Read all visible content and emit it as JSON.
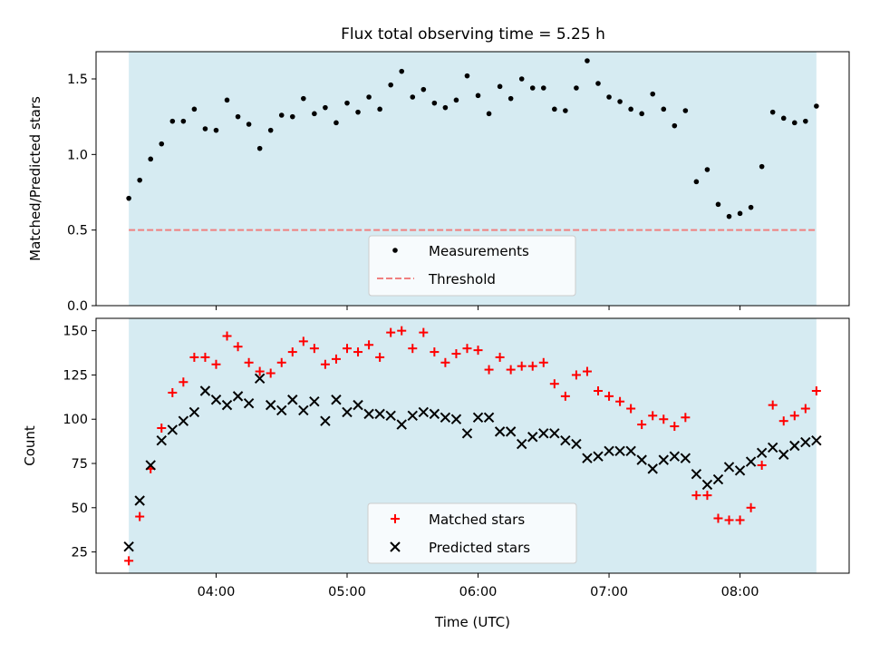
{
  "title": "Flux total observing time = 5.25 h",
  "colors": {
    "span": "#add8e6",
    "threshold": "#f08080",
    "matched": "#ff0000",
    "predicted": "#000000",
    "measurement": "#000000"
  },
  "chart_data": [
    {
      "type": "scatter",
      "ylabel": "Matched/Predicted stars",
      "xlim": [
        "03:05",
        "08:50"
      ],
      "ylim": [
        0,
        1.68
      ],
      "yticks": [
        "0.0",
        "0.5",
        "1.0",
        "1.5"
      ],
      "observing_span": [
        "03:20",
        "08:35"
      ],
      "threshold": 0.5,
      "legend_position": "lower center",
      "legend": [
        "Measurements",
        "Threshold"
      ],
      "series": [
        {
          "name": "Measurements",
          "x": [
            "03:20",
            "03:25",
            "03:30",
            "03:35",
            "03:40",
            "03:45",
            "03:50",
            "03:55",
            "04:00",
            "04:05",
            "04:10",
            "04:15",
            "04:20",
            "04:25",
            "04:30",
            "04:35",
            "04:40",
            "04:45",
            "04:50",
            "04:55",
            "05:00",
            "05:05",
            "05:10",
            "05:15",
            "05:20",
            "05:25",
            "05:30",
            "05:35",
            "05:40",
            "05:45",
            "05:50",
            "05:55",
            "06:00",
            "06:05",
            "06:10",
            "06:15",
            "06:20",
            "06:25",
            "06:30",
            "06:35",
            "06:40",
            "06:45",
            "06:50",
            "06:55",
            "07:00",
            "07:05",
            "07:10",
            "07:15",
            "07:20",
            "07:25",
            "07:30",
            "07:35",
            "07:40",
            "07:45",
            "07:50",
            "07:55",
            "08:00",
            "08:05",
            "08:10",
            "08:15",
            "08:20",
            "08:25",
            "08:30",
            "08:35"
          ],
          "values": [
            0.71,
            0.83,
            0.97,
            1.07,
            1.22,
            1.22,
            1.3,
            1.17,
            1.16,
            1.36,
            1.25,
            1.2,
            1.04,
            1.16,
            1.26,
            1.25,
            1.37,
            1.27,
            1.31,
            1.21,
            1.34,
            1.28,
            1.38,
            1.3,
            1.46,
            1.55,
            1.38,
            1.43,
            1.34,
            1.31,
            1.36,
            1.52,
            1.39,
            1.27,
            1.45,
            1.37,
            1.5,
            1.44,
            1.44,
            1.3,
            1.29,
            1.44,
            1.62,
            1.47,
            1.38,
            1.35,
            1.3,
            1.27,
            1.4,
            1.3,
            1.19,
            1.29,
            0.82,
            0.9,
            0.67,
            0.59,
            0.61,
            0.65,
            0.92,
            1.28,
            1.24,
            1.21,
            1.22,
            1.32
          ]
        },
        {
          "name": "Threshold",
          "values": [
            0.5
          ]
        }
      ]
    },
    {
      "type": "scatter",
      "xlabel": "Time (UTC)",
      "ylabel": "Count",
      "xlim": [
        "03:05",
        "08:50"
      ],
      "ylim": [
        13,
        157
      ],
      "xticks": [
        "04:00",
        "05:00",
        "06:00",
        "07:00",
        "08:00"
      ],
      "yticks": [
        "25",
        "50",
        "75",
        "100",
        "125",
        "150"
      ],
      "observing_span": [
        "03:20",
        "08:35"
      ],
      "legend_position": "lower center",
      "legend": [
        "Matched stars",
        "Predicted stars"
      ],
      "x": [
        "03:20",
        "03:25",
        "03:30",
        "03:35",
        "03:40",
        "03:45",
        "03:50",
        "03:55",
        "04:00",
        "04:05",
        "04:10",
        "04:15",
        "04:20",
        "04:25",
        "04:30",
        "04:35",
        "04:40",
        "04:45",
        "04:50",
        "04:55",
        "05:00",
        "05:05",
        "05:10",
        "05:15",
        "05:20",
        "05:25",
        "05:30",
        "05:35",
        "05:40",
        "05:45",
        "05:50",
        "05:55",
        "06:00",
        "06:05",
        "06:10",
        "06:15",
        "06:20",
        "06:25",
        "06:30",
        "06:35",
        "06:40",
        "06:45",
        "06:50",
        "06:55",
        "07:00",
        "07:05",
        "07:10",
        "07:15",
        "07:20",
        "07:25",
        "07:30",
        "07:35",
        "07:40",
        "07:45",
        "07:50",
        "07:55",
        "08:00",
        "08:05",
        "08:10",
        "08:15",
        "08:20",
        "08:25",
        "08:30",
        "08:35"
      ],
      "series": [
        {
          "name": "Matched stars",
          "values": [
            20,
            45,
            72,
            95,
            115,
            121,
            135,
            135,
            131,
            147,
            141,
            132,
            127,
            126,
            132,
            138,
            144,
            140,
            131,
            134,
            140,
            138,
            142,
            135,
            149,
            150,
            140,
            149,
            138,
            132,
            137,
            140,
            139,
            128,
            135,
            128,
            130,
            130,
            132,
            120,
            113,
            125,
            127,
            116,
            113,
            110,
            106,
            97,
            102,
            100,
            96,
            101,
            57,
            57,
            44,
            43,
            43,
            50,
            74,
            108,
            99,
            102,
            106,
            116
          ]
        },
        {
          "name": "Predicted stars",
          "values": [
            28,
            54,
            74,
            88,
            94,
            99,
            104,
            116,
            111,
            108,
            113,
            109,
            123,
            108,
            105,
            111,
            105,
            110,
            99,
            111,
            104,
            108,
            103,
            103,
            102,
            97,
            102,
            104,
            103,
            101,
            100,
            92,
            101,
            101,
            93,
            93,
            86,
            90,
            92,
            92,
            88,
            86,
            78,
            79,
            82,
            82,
            82,
            77,
            72,
            77,
            79,
            78,
            69,
            63,
            66,
            73,
            71,
            76,
            81,
            84,
            80,
            85,
            87,
            88
          ]
        }
      ]
    }
  ]
}
